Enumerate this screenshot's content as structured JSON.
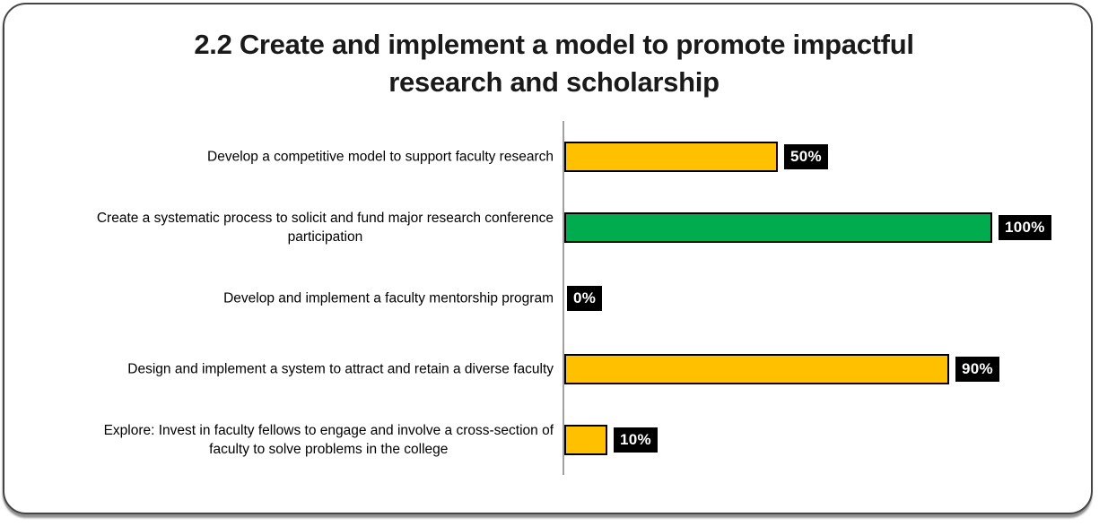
{
  "title": "2.2 Create and implement a model to promote impactful research and scholarship",
  "colors": {
    "bar_yellow": "#FFC000",
    "bar_green": "#00AC4E",
    "bar_border": "#000000",
    "axis_line": "#A0A0A0",
    "value_label_bg": "#000000",
    "value_label_text": "#FFFFFF",
    "title_text": "#1A1A1A"
  },
  "chart_data": {
    "type": "bar",
    "orientation": "horizontal",
    "title": "2.2 Create and implement a model to promote impactful research and scholarship",
    "xlabel": "",
    "ylabel": "",
    "xlim": [
      0,
      100
    ],
    "grid": false,
    "legend": false,
    "categories": [
      "Develop a competitive model to support faculty research",
      "Create a systematic process to solicit and fund major research conference\nparticipation",
      "Develop and implement a faculty mentorship program",
      "Design and implement a system to attract and retain a diverse faculty",
      "Explore: Invest in faculty fellows to engage and involve a cross-section of\nfaculty to solve problems in the college"
    ],
    "values": [
      50,
      100,
      0,
      90,
      10
    ],
    "value_labels": [
      "50%",
      "100%",
      "0%",
      "90%",
      "10%"
    ],
    "bar_colors": [
      "#FFC000",
      "#00AC4E",
      "#FFC000",
      "#FFC000",
      "#FFC000"
    ]
  }
}
